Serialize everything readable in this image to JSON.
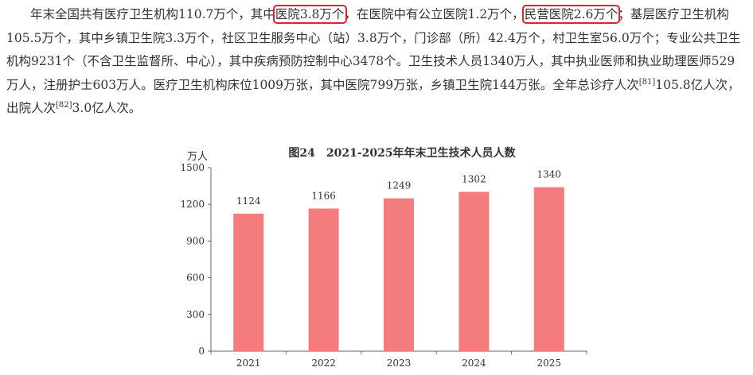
{
  "paragraph": {
    "t1": "年末全国共有医疗卫生机构110.7万个，其中",
    "h1": "医院3.8万个",
    "t2": "，在医院中有公立医院1.2万个，",
    "h2": "民营医院2.6万个",
    "t3": "；基层医疗卫生机构105.5万个，其中乡镇卫生院3.3万个，社区卫生服务中心（站）3.8万个，门诊部（所）42.4万个，村卫生室56.0万个；专业公共卫生机构9231个（不含卫生监督所、中心），其中疾病预防控制中心3478个。卫生技术人员1340万人，其中执业医师和执业助理医师529万人，注册护士603万人。医疗卫生机构床位1009万张，其中医院799万张，乡镇卫生院144万张。全年总诊疗人次",
    "fn1": "[81]",
    "t4": "105.8亿人次，出院人次",
    "fn2": "[82]",
    "t5": "3.0亿人次。"
  },
  "highlight_color": "#e0242b",
  "chart_data": {
    "type": "bar",
    "title": "图24　2021-2025年年末卫生技术人员人数",
    "unit": "万人",
    "categories": [
      "2021",
      "2022",
      "2023",
      "2024",
      "2025"
    ],
    "values": [
      1124,
      1166,
      1249,
      1302,
      1340
    ],
    "data_labels": [
      "1124",
      "1166",
      "1249",
      "1302",
      "1340"
    ],
    "ylim": [
      0,
      1500
    ],
    "yticks": [
      0,
      300,
      600,
      900,
      1200,
      1500
    ],
    "bar_color": "#f47c7c",
    "grid": false
  }
}
